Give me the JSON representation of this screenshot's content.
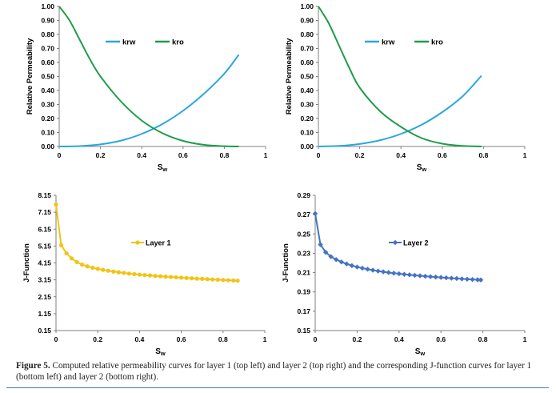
{
  "colors": {
    "krw": "#2aa7dd",
    "kro": "#1f9c4a",
    "layer1": "#f2c313",
    "layer2": "#4472c4",
    "axis": "#7f7f7f"
  },
  "chart_data": [
    {
      "id": "top-left",
      "type": "line",
      "title": "",
      "xlabel": "Sw",
      "ylabel": "Relative Permeability",
      "xlim": [
        0,
        1
      ],
      "ylim": [
        0,
        1
      ],
      "xticks": [
        "0",
        "0.2",
        "0.4",
        "0.6",
        "0.8",
        "1"
      ],
      "yticks": [
        "0.00",
        "0.10",
        "0.20",
        "0.30",
        "0.40",
        "0.50",
        "0.60",
        "0.70",
        "0.80",
        "0.90",
        "1.00"
      ],
      "legend": "top-center",
      "series": [
        {
          "name": "krw",
          "color_key": "krw",
          "x": [
            0,
            0.1,
            0.2,
            0.3,
            0.4,
            0.5,
            0.6,
            0.7,
            0.8,
            0.87
          ],
          "y": [
            0,
            0.003,
            0.015,
            0.042,
            0.09,
            0.16,
            0.255,
            0.375,
            0.52,
            0.655
          ]
        },
        {
          "name": "kro",
          "color_key": "kro",
          "x": [
            0,
            0.05,
            0.1,
            0.15,
            0.2,
            0.3,
            0.4,
            0.5,
            0.6,
            0.7,
            0.8,
            0.87
          ],
          "y": [
            1.0,
            0.9,
            0.76,
            0.62,
            0.5,
            0.32,
            0.185,
            0.095,
            0.04,
            0.012,
            0.002,
            0
          ]
        }
      ]
    },
    {
      "id": "top-right",
      "type": "line",
      "title": "",
      "xlabel": "Sw",
      "ylabel": "Relative Permeability",
      "xlim": [
        0,
        1
      ],
      "ylim": [
        0,
        1
      ],
      "xticks": [
        "0",
        "0.2",
        "0.4",
        "0.6",
        "0.8",
        "1"
      ],
      "yticks": [
        "0.00",
        "0.10",
        "0.20",
        "0.30",
        "0.40",
        "0.50",
        "0.60",
        "0.70",
        "0.80",
        "0.90",
        "1.00"
      ],
      "legend": "top-center",
      "series": [
        {
          "name": "krw",
          "color_key": "krw",
          "x": [
            0,
            0.1,
            0.2,
            0.3,
            0.4,
            0.5,
            0.6,
            0.7,
            0.79
          ],
          "y": [
            0,
            0.004,
            0.018,
            0.045,
            0.09,
            0.155,
            0.245,
            0.36,
            0.505
          ]
        },
        {
          "name": "kro",
          "color_key": "kro",
          "x": [
            0,
            0.05,
            0.1,
            0.15,
            0.2,
            0.3,
            0.4,
            0.5,
            0.6,
            0.7,
            0.79
          ],
          "y": [
            1.0,
            0.88,
            0.72,
            0.56,
            0.42,
            0.25,
            0.14,
            0.06,
            0.02,
            0.004,
            0
          ]
        }
      ]
    },
    {
      "id": "bottom-left",
      "type": "line",
      "title": "",
      "xlabel": "Sw",
      "ylabel": "J-Function",
      "xlim": [
        0,
        1
      ],
      "ylim": [
        0.15,
        8.15
      ],
      "xticks": [
        "0",
        "0.2",
        "0.4",
        "0.6",
        "0.8",
        "1"
      ],
      "yticks": [
        "0.15",
        "1.15",
        "2.15",
        "3.15",
        "4.15",
        "5.15",
        "6.15",
        "7.15",
        "8.15"
      ],
      "legend": "center",
      "series": [
        {
          "name": "Layer 1",
          "color_key": "layer1",
          "marker": "circle",
          "x": [
            0,
            0.025,
            0.05,
            0.075,
            0.1,
            0.125,
            0.15,
            0.175,
            0.2,
            0.225,
            0.25,
            0.275,
            0.3,
            0.325,
            0.35,
            0.375,
            0.4,
            0.425,
            0.45,
            0.475,
            0.5,
            0.525,
            0.55,
            0.575,
            0.6,
            0.625,
            0.65,
            0.675,
            0.7,
            0.725,
            0.75,
            0.775,
            0.8,
            0.825,
            0.85,
            0.87
          ],
          "y": [
            7.6,
            5.2,
            4.72,
            4.42,
            4.2,
            4.05,
            3.95,
            3.87,
            3.8,
            3.74,
            3.69,
            3.64,
            3.6,
            3.56,
            3.52,
            3.49,
            3.46,
            3.43,
            3.41,
            3.38,
            3.36,
            3.34,
            3.32,
            3.3,
            3.28,
            3.26,
            3.24,
            3.22,
            3.21,
            3.19,
            3.17,
            3.16,
            3.14,
            3.13,
            3.11,
            3.1
          ]
        }
      ]
    },
    {
      "id": "bottom-right",
      "type": "line",
      "title": "",
      "xlabel": "Sw",
      "ylabel": "J-Function",
      "xlim": [
        0,
        1
      ],
      "ylim": [
        0.15,
        0.29
      ],
      "xticks": [
        "0",
        "0.2",
        "0.4",
        "0.6",
        "0.8",
        "1"
      ],
      "yticks": [
        "0.15",
        "0.17",
        "0.19",
        "0.21",
        "0.23",
        "0.25",
        "0.27",
        "0.29"
      ],
      "legend": "center",
      "series": [
        {
          "name": "Layer 2",
          "color_key": "layer2",
          "marker": "diamond",
          "x": [
            0,
            0.025,
            0.05,
            0.075,
            0.1,
            0.125,
            0.15,
            0.175,
            0.2,
            0.225,
            0.25,
            0.275,
            0.3,
            0.325,
            0.35,
            0.375,
            0.4,
            0.425,
            0.45,
            0.475,
            0.5,
            0.525,
            0.55,
            0.575,
            0.6,
            0.625,
            0.65,
            0.675,
            0.7,
            0.725,
            0.75,
            0.775,
            0.79
          ],
          "y": [
            0.271,
            0.239,
            0.231,
            0.2265,
            0.2235,
            0.221,
            0.219,
            0.2172,
            0.2158,
            0.2146,
            0.2135,
            0.2125,
            0.2116,
            0.2108,
            0.2101,
            0.2094,
            0.2088,
            0.2082,
            0.2077,
            0.2072,
            0.2067,
            0.2062,
            0.2058,
            0.2054,
            0.205,
            0.2046,
            0.2042,
            0.2039,
            0.2035,
            0.2032,
            0.2029,
            0.2026,
            0.2024
          ]
        }
      ]
    }
  ],
  "caption": {
    "label": "Figure 5.",
    "text": " Computed relative permeability curves for layer 1 (top left) and layer 2 (top right) and the corresponding J-function curves for layer 1 (bottom left) and layer 2 (bottom right)."
  }
}
